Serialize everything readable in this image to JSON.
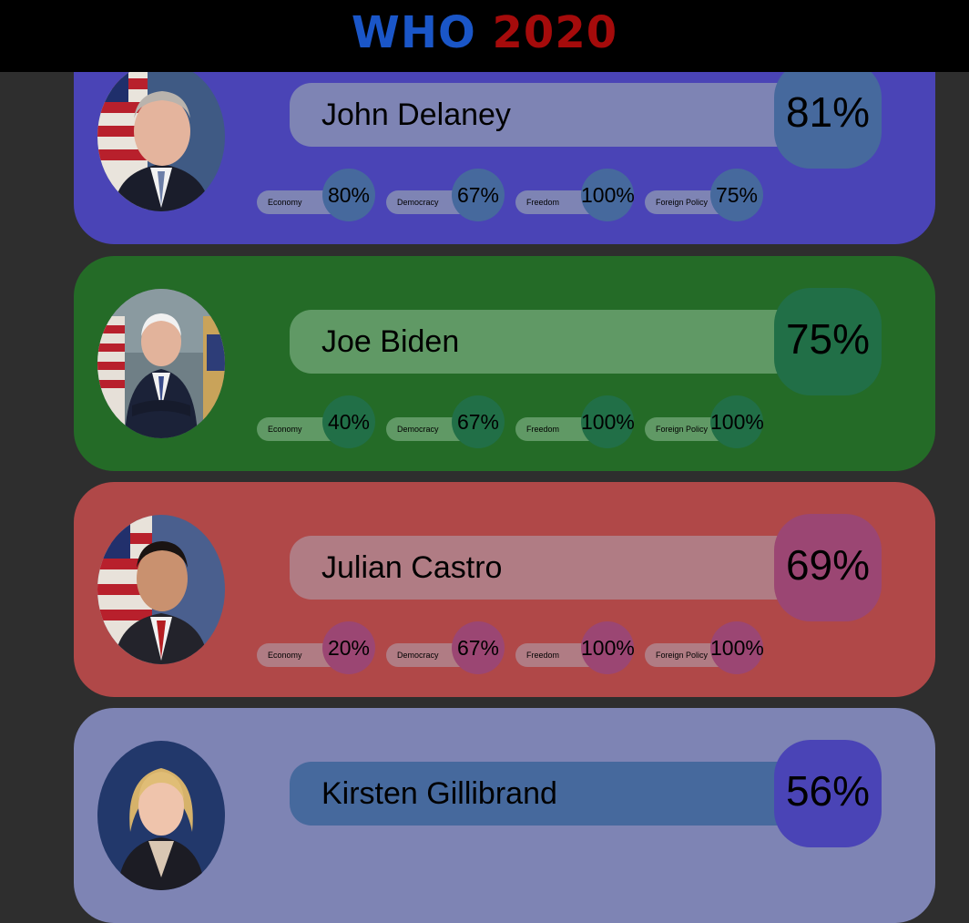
{
  "header": {
    "logo_who": "WHO",
    "logo_year": "2020",
    "colors": {
      "background": "#000000",
      "who": "#1a56c8",
      "year": "#a50b0b"
    }
  },
  "candidates": [
    {
      "name": "John Delaney",
      "score": "81%",
      "colors": {
        "card": "#4a44b6",
        "bar": "#7e84b4",
        "bubble": "#46699d",
        "metric": "#7e84b4",
        "circle": "#46699d"
      },
      "metrics": [
        {
          "label": "Economy",
          "value": "80%"
        },
        {
          "label": "Democracy",
          "value": "67%"
        },
        {
          "label": "Freedom",
          "value": "100%"
        },
        {
          "label": "Foreign Policy",
          "value": "75%"
        }
      ]
    },
    {
      "name": "Joe Biden",
      "score": "75%",
      "colors": {
        "card": "#246b27",
        "bar": "#609965",
        "bubble": "#216f47",
        "metric": "#609965",
        "circle": "#216f47"
      },
      "metrics": [
        {
          "label": "Economy",
          "value": "40%"
        },
        {
          "label": "Democracy",
          "value": "67%"
        },
        {
          "label": "Freedom",
          "value": "100%"
        },
        {
          "label": "Foreign Policy",
          "value": "100%"
        }
      ]
    },
    {
      "name": "Julian Castro",
      "score": "69%",
      "colors": {
        "card": "#b04848",
        "bar": "#b07c84",
        "bubble": "#9b4673",
        "metric": "#b07c84",
        "circle": "#9b4673"
      },
      "metrics": [
        {
          "label": "Economy",
          "value": "20%"
        },
        {
          "label": "Democracy",
          "value": "67%"
        },
        {
          "label": "Freedom",
          "value": "100%"
        },
        {
          "label": "Foreign Policy",
          "value": "100%"
        }
      ]
    },
    {
      "name": "Kirsten Gillibrand",
      "score": "56%",
      "colors": {
        "card": "#7e84b4",
        "bar": "#46699d",
        "bubble": "#4a44b6",
        "metric": "#46699d",
        "circle": "#4a44b6"
      },
      "metrics": []
    }
  ]
}
